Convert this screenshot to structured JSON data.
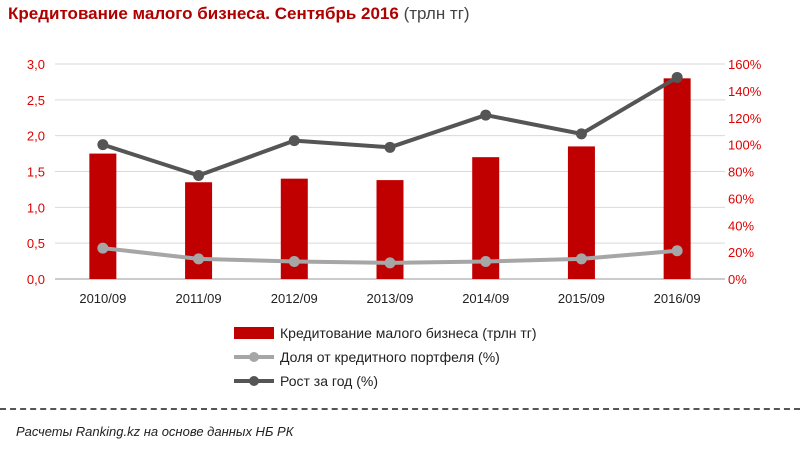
{
  "chart_data": {
    "type": "bar+line",
    "title": "Кредитование  малого бизнеса. Сентябрь 2016",
    "title_unit": "(трлн тг)",
    "categories": [
      "2010/09",
      "2011/09",
      "2012/09",
      "2013/09",
      "2014/09",
      "2015/09",
      "2016/09"
    ],
    "y_left": {
      "ticks": [
        "0,0",
        "0,5",
        "1,0",
        "1,5",
        "2,0",
        "2,5",
        "3,0"
      ],
      "min": 0,
      "max": 3
    },
    "y_right": {
      "ticks": [
        "0%",
        "20%",
        "40%",
        "60%",
        "80%",
        "100%",
        "120%",
        "140%",
        "160%"
      ],
      "min": 0,
      "max": 160
    },
    "series": [
      {
        "name": "Кредитование малого бизнеса (трлн тг)",
        "type": "bar",
        "axis": "left",
        "color": "#c00000",
        "values": [
          1.75,
          1.35,
          1.4,
          1.38,
          1.7,
          1.85,
          2.8
        ]
      },
      {
        "name": "Доля от кредитного портфеля (%)",
        "type": "line",
        "axis": "right",
        "color": "#a6a6a6",
        "values": [
          23,
          15,
          13,
          12,
          13,
          15,
          21
        ]
      },
      {
        "name": "Рост за год (%)",
        "type": "line",
        "axis": "right",
        "color": "#555555",
        "values": [
          100,
          77,
          103,
          98,
          122,
          108,
          150
        ]
      }
    ],
    "legend_position": "bottom",
    "grid": true
  },
  "footer": {
    "source": "Расчеты Ranking.kz на основе данных  НБ РК"
  }
}
